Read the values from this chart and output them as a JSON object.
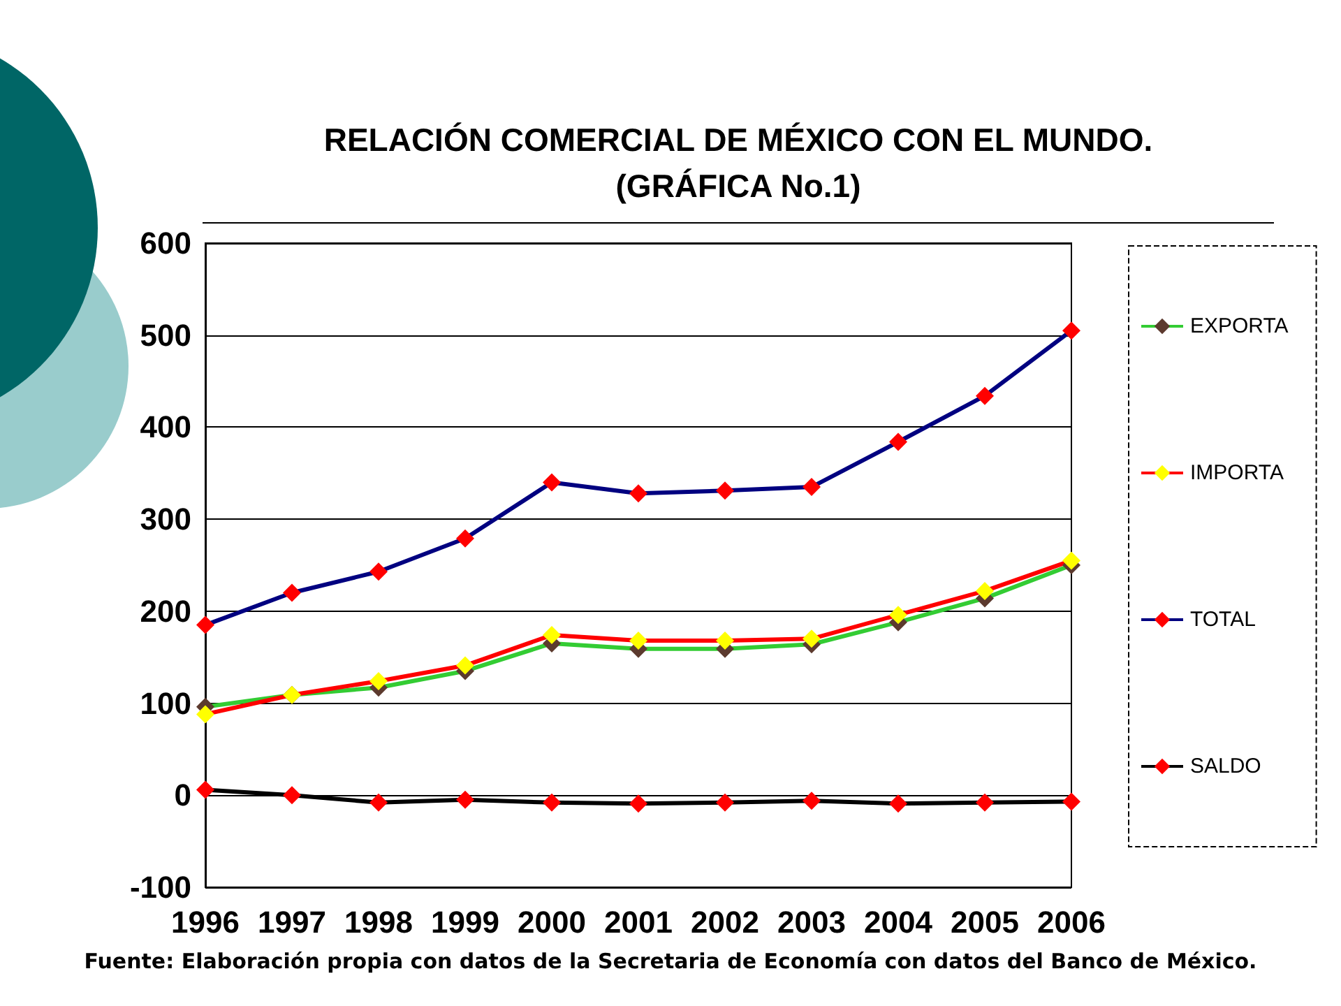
{
  "chart_data": {
    "type": "line",
    "title": "RELACIÓN COMERCIAL DE MÉXICO CON EL MUNDO.\n(GRÁFICA No.1)",
    "categories": [
      "1996",
      "1997",
      "1998",
      "1999",
      "2000",
      "2001",
      "2002",
      "2003",
      "2004",
      "2005",
      "2006"
    ],
    "series": [
      {
        "name": "EXPORTA",
        "color": "#33cc33",
        "colors": [
          "#5c3a2e",
          "#5c3a2e",
          "#5c3a2e",
          "#5c3a2e",
          "#5c3a2e",
          "#5c3a2e",
          "#5c3a2e",
          "#5c3a2e",
          "#5c3a2e",
          "#5c3a2e",
          "#5c3a2e"
        ],
        "values": [
          96,
          109,
          117,
          135,
          165,
          159,
          159,
          164,
          188,
          214,
          250
        ]
      },
      {
        "name": "IMPORTA",
        "color": "#ff0000",
        "colors": [
          "#ffff00",
          "#ffff00",
          "#ffff00",
          "#ffff00",
          "#ffff00",
          "#ffff00",
          "#ffff00",
          "#ffff00",
          "#ffff00",
          "#ffff00",
          "#ffff00"
        ],
        "values": [
          88,
          109,
          124,
          141,
          174,
          168,
          168,
          170,
          196,
          222,
          255
        ]
      },
      {
        "name": "TOTAL",
        "color": "#000080",
        "colors": [
          "#ff0000",
          "#ff0000",
          "#ff0000",
          "#ff0000",
          "#ff0000",
          "#ff0000",
          "#ff0000",
          "#ff0000",
          "#ff0000",
          "#ff0000",
          "#ff0000"
        ],
        "values": [
          185,
          220,
          243,
          279,
          340,
          328,
          331,
          335,
          384,
          434,
          505
        ]
      },
      {
        "name": "SALDO",
        "color": "#000000",
        "colors": [
          "#ff0000",
          "#ff0000",
          "#ff0000",
          "#ff0000",
          "#ff0000",
          "#ff0000",
          "#ff0000",
          "#ff0000",
          "#ff0000",
          "#ff0000",
          "#ff0000"
        ],
        "values": [
          6,
          0,
          -8,
          -5,
          -8,
          -9,
          -8,
          -6,
          -9,
          -8,
          -7
        ]
      }
    ],
    "ylim": [
      -100,
      600
    ],
    "yticks": [
      -100,
      0,
      100,
      200,
      300,
      400,
      500,
      600
    ],
    "grid": "y",
    "legend": "right",
    "marker": "diamond",
    "line_style": "solid",
    "annotations": [
      "Fuente: Elaboración propia con datos de la Secretaria de Economía con datos del Banco de México."
    ]
  }
}
